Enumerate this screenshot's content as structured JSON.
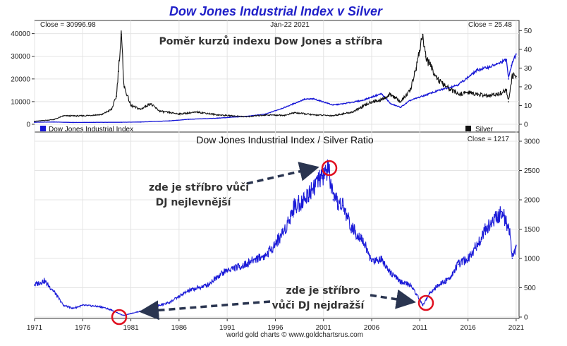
{
  "page": {
    "title": "Dow Jones Industrial Index v Silver",
    "footer": "world gold charts © www.goldchartsrus.com",
    "colors": {
      "title": "#1f1fc8",
      "dow": "#1515d6",
      "silver": "#111111",
      "ratio": "#1a1ad8",
      "highlight": "#e01020",
      "arrow": "#2a3550"
    }
  },
  "chart_data": [
    {
      "type": "line",
      "annotation": "Poměr kurzů indexu Dow Jones a stříbra",
      "date_label": "Jan-22  2021",
      "close_left": "Close = 30996.98",
      "close_right": "Close = 25.48",
      "x_ticks": [
        "1971",
        "1976",
        "1981",
        "1986",
        "1991",
        "1996",
        "2001",
        "2006",
        "2011",
        "2016",
        "2021"
      ],
      "y_left_ticks": [
        "0",
        "10000",
        "20000",
        "30000",
        "40000"
      ],
      "y_right_ticks": [
        "0",
        "10",
        "20",
        "30",
        "40",
        "50"
      ],
      "ylim_left": [
        0,
        43000
      ],
      "ylim_right": [
        0,
        52
      ],
      "grid": true,
      "legend_position": "bottom",
      "series": [
        {
          "name": "Dow Jones Industrial Index",
          "axis": "left",
          "x": [
            1971,
            1973,
            1975,
            1980,
            1982,
            1985,
            1987,
            1990,
            1993,
            1995,
            1997,
            1999,
            2000,
            2002,
            2003,
            2005,
            2007,
            2008,
            2009,
            2010,
            2013,
            2015,
            2017,
            2018,
            2019,
            2020,
            2020.2,
            2020.5,
            2021
          ],
          "y": [
            900,
            1000,
            800,
            900,
            1000,
            1500,
            2200,
            2700,
            3500,
            4500,
            7500,
            11000,
            11200,
            8500,
            9000,
            10500,
            13500,
            9000,
            7500,
            10500,
            15000,
            17500,
            24000,
            25000,
            26500,
            28500,
            20000,
            26000,
            31000
          ]
        },
        {
          "name": "Silver",
          "axis": "right",
          "x": [
            1971,
            1973,
            1974,
            1976,
            1978,
            1979,
            1979.5,
            1980,
            1980.3,
            1981,
            1982,
            1983,
            1984,
            1986,
            1988,
            1990,
            1993,
            1995,
            1997,
            1998,
            2000,
            2002,
            2004,
            2006,
            2007,
            2008,
            2009,
            2010,
            2010.6,
            2011.3,
            2011.6,
            2012,
            2013,
            2014,
            2015,
            2016,
            2018,
            2019,
            2020,
            2020.2,
            2020.6,
            2021
          ],
          "y": [
            1.6,
            2.5,
            4.5,
            4.5,
            5.2,
            8,
            15,
            48,
            20,
            10,
            8,
            11,
            7,
            5.5,
            6.5,
            5,
            4,
            5,
            4.8,
            6.2,
            5,
            4.6,
            6.5,
            12,
            13,
            16,
            12,
            18,
            30,
            48,
            36,
            32,
            23,
            19,
            16,
            17,
            15,
            16,
            18,
            12,
            26,
            25.5
          ]
        }
      ]
    },
    {
      "type": "line",
      "title": "Dow Jones Industrial Index  /  Silver Ratio",
      "close_label": "Close = 1217",
      "x_ticks": [
        "1971",
        "1976",
        "1981",
        "1986",
        "1991",
        "1996",
        "2001",
        "2006",
        "2011",
        "2016",
        "2021"
      ],
      "y_ticks": [
        "0",
        "500",
        "1000",
        "1500",
        "2000",
        "2500",
        "3000"
      ],
      "ylim": [
        0,
        3000
      ],
      "grid": true,
      "annotations": [
        "zde je stříbro vůči",
        "DJ nejlevnější",
        "zde je stříbro",
        "vůči DJ nejdražší"
      ],
      "series": [
        {
          "name": "Dow Jones Industrial Index / Silver Ratio",
          "x": [
            1971,
            1972,
            1973,
            1974,
            1975,
            1976,
            1977,
            1978,
            1979,
            1980,
            1980.3,
            1981,
            1982,
            1983,
            1984,
            1985,
            1986,
            1987,
            1988,
            1989,
            1990,
            1991,
            1992,
            1993,
            1994,
            1995,
            1996,
            1997,
            1998,
            1999,
            2000,
            2001,
            2001.5,
            2002,
            2003,
            2004,
            2005,
            2006,
            2007,
            2008,
            2009,
            2010,
            2011,
            2011.3,
            2012,
            2013,
            2014,
            2015,
            2016,
            2017,
            2018,
            2019,
            2019.5,
            2020,
            2020.3,
            2020.6,
            2021
          ],
          "y": [
            550,
            620,
            440,
            200,
            150,
            200,
            190,
            170,
            120,
            40,
            30,
            60,
            100,
            150,
            200,
            250,
            350,
            450,
            500,
            550,
            700,
            800,
            850,
            900,
            1000,
            1050,
            1250,
            1500,
            1900,
            2000,
            2250,
            2400,
            2550,
            2000,
            1900,
            1500,
            1350,
            950,
            1000,
            750,
            600,
            550,
            300,
            200,
            400,
            550,
            650,
            900,
            1000,
            1250,
            1550,
            1700,
            1800,
            1600,
            1500,
            1000,
            1217
          ]
        }
      ]
    }
  ]
}
